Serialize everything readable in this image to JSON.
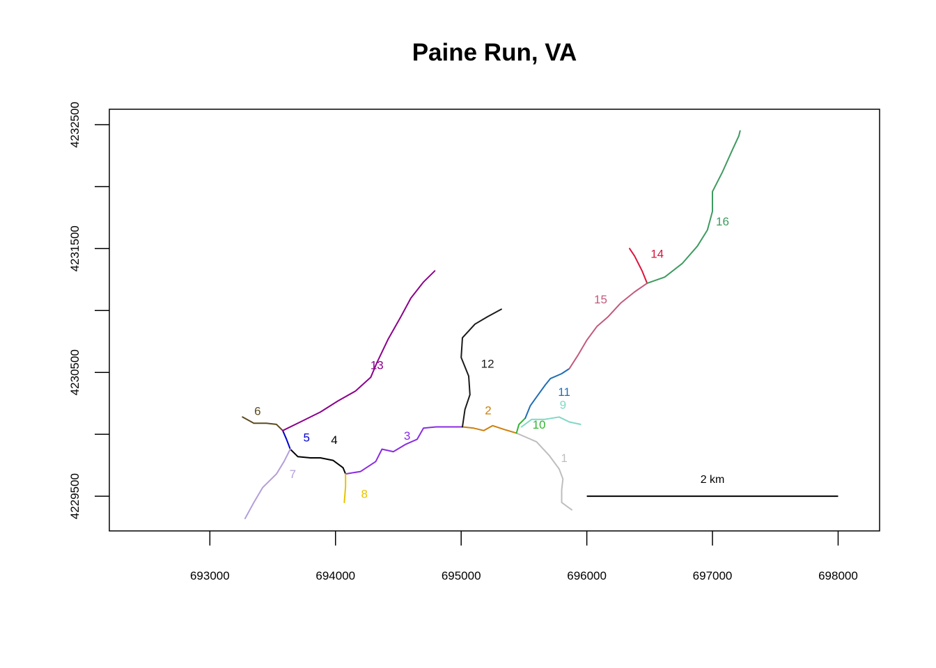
{
  "title": "Paine Run, VA",
  "chart_data": {
    "type": "map",
    "title": "Paine Run, VA",
    "xlabel": "",
    "ylabel": "",
    "xlim": [
      692200,
      698330
    ],
    "ylim": [
      4229220,
      4232625
    ],
    "x_ticks": [
      693000,
      694000,
      695000,
      696000,
      697000,
      698000
    ],
    "y_ticks": [
      4229500,
      4230000,
      4230500,
      4231000,
      4231500,
      4232000,
      4232500
    ],
    "x_tick_labels": [
      "693000",
      "694000",
      "695000",
      "696000",
      "697000",
      "698000"
    ],
    "y_tick_labels": [
      "4229500",
      "4230500",
      "4231500",
      "4232500"
    ],
    "grid": false,
    "scale_bar": {
      "label": "2 km",
      "x_start": 696000,
      "x_end": 698000,
      "y": 4229500
    },
    "segments": [
      {
        "id": "1",
        "label": "1",
        "color": "#bebebe",
        "label_pos": [
          695820,
          4229810
        ],
        "path": [
          [
            695440,
            4230010
          ],
          [
            695600,
            4229940
          ],
          [
            695700,
            4229830
          ],
          [
            695780,
            4229720
          ],
          [
            695810,
            4229640
          ],
          [
            695800,
            4229550
          ],
          [
            695800,
            4229450
          ],
          [
            695840,
            4229420
          ],
          [
            695880,
            4229390
          ]
        ]
      },
      {
        "id": "2",
        "label": "2",
        "color": "#cd7f0a",
        "label_pos": [
          695215,
          4230195
        ],
        "path": [
          [
            695010,
            4230060
          ],
          [
            695100,
            4230050
          ],
          [
            695180,
            4230030
          ],
          [
            695250,
            4230070
          ],
          [
            695340,
            4230040
          ],
          [
            695440,
            4230010
          ]
        ]
      },
      {
        "id": "3",
        "label": "3",
        "color": "#8a2be2",
        "label_pos": [
          694570,
          4229990
        ],
        "path": [
          [
            694080,
            4229680
          ],
          [
            694200,
            4229700
          ],
          [
            694320,
            4229780
          ],
          [
            694370,
            4229880
          ],
          [
            694460,
            4229860
          ],
          [
            694560,
            4229920
          ],
          [
            694650,
            4229960
          ],
          [
            694700,
            4230050
          ],
          [
            694800,
            4230060
          ],
          [
            694900,
            4230060
          ],
          [
            695010,
            4230060
          ]
        ]
      },
      {
        "id": "4",
        "label": "4",
        "color": "#000000",
        "label_pos": [
          693990,
          4229955
        ],
        "path": [
          [
            693640,
            4229880
          ],
          [
            693700,
            4229820
          ],
          [
            693800,
            4229810
          ],
          [
            693880,
            4229810
          ],
          [
            693980,
            4229790
          ],
          [
            694060,
            4229730
          ],
          [
            694080,
            4229680
          ]
        ]
      },
      {
        "id": "5",
        "label": "5",
        "color": "#0000cd",
        "label_pos": [
          693770,
          4229975
        ],
        "path": [
          [
            693580,
            4230030
          ],
          [
            693610,
            4229960
          ],
          [
            693640,
            4229880
          ]
        ]
      },
      {
        "id": "6",
        "label": "6",
        "color": "#5c4a1f",
        "label_pos": [
          693380,
          4230190
        ],
        "path": [
          [
            693260,
            4230140
          ],
          [
            693350,
            4230090
          ],
          [
            693450,
            4230090
          ],
          [
            693530,
            4230080
          ],
          [
            693580,
            4230030
          ]
        ]
      },
      {
        "id": "7",
        "label": "7",
        "color": "#b39ddb",
        "label_pos": [
          693660,
          4229680
        ],
        "path": [
          [
            693640,
            4229880
          ],
          [
            693590,
            4229780
          ],
          [
            693530,
            4229680
          ],
          [
            693420,
            4229570
          ],
          [
            693350,
            4229450
          ],
          [
            693280,
            4229320
          ]
        ]
      },
      {
        "id": "8",
        "label": "8",
        "color": "#e6c300",
        "label_pos": [
          694230,
          4229520
        ],
        "path": [
          [
            694080,
            4229680
          ],
          [
            694080,
            4229580
          ],
          [
            694070,
            4229450
          ]
        ]
      },
      {
        "id": "9",
        "label": "9",
        "color": "#7fd8c5",
        "label_pos": [
          695810,
          4230240
        ],
        "path": [
          [
            695480,
            4230060
          ],
          [
            695560,
            4230120
          ],
          [
            695660,
            4230120
          ],
          [
            695780,
            4230140
          ],
          [
            695860,
            4230100
          ],
          [
            695950,
            4230080
          ]
        ]
      },
      {
        "id": "10",
        "label": "10",
        "color": "#32b432",
        "label_pos": [
          695620,
          4230080
        ],
        "path": [
          [
            695440,
            4230010
          ],
          [
            695460,
            4230080
          ],
          [
            695510,
            4230130
          ]
        ]
      },
      {
        "id": "11",
        "label": "11",
        "color": "#1f6eb4",
        "label_pos": [
          695820,
          4230345
        ],
        "path": [
          [
            695510,
            4230130
          ],
          [
            695550,
            4230230
          ],
          [
            695620,
            4230330
          ],
          [
            695670,
            4230400
          ],
          [
            695710,
            4230450
          ],
          [
            695800,
            4230490
          ],
          [
            695860,
            4230530
          ]
        ]
      },
      {
        "id": "12",
        "label": "12",
        "color": "#1a1a1a",
        "label_pos": [
          695210,
          4230570
        ],
        "path": [
          [
            695010,
            4230060
          ],
          [
            695030,
            4230200
          ],
          [
            695070,
            4230320
          ],
          [
            695060,
            4230470
          ],
          [
            695000,
            4230620
          ],
          [
            695010,
            4230780
          ],
          [
            695110,
            4230890
          ],
          [
            695210,
            4230950
          ],
          [
            695320,
            4231010
          ]
        ]
      },
      {
        "id": "13",
        "label": "13",
        "color": "#8b008b",
        "label_pos": [
          694330,
          4230560
        ],
        "path": [
          [
            693580,
            4230030
          ],
          [
            693740,
            4230110
          ],
          [
            693880,
            4230180
          ],
          [
            694020,
            4230270
          ],
          [
            694160,
            4230350
          ],
          [
            694280,
            4230460
          ],
          [
            694330,
            4230580
          ],
          [
            694420,
            4230770
          ],
          [
            694520,
            4230950
          ],
          [
            694600,
            4231100
          ],
          [
            694700,
            4231230
          ],
          [
            694790,
            4231320
          ]
        ]
      },
      {
        "id": "15",
        "label": "15",
        "color": "#c15a7c",
        "label_pos": [
          696110,
          4231090
        ],
        "path": [
          [
            695860,
            4230530
          ],
          [
            695930,
            4230640
          ],
          [
            696000,
            4230760
          ],
          [
            696080,
            4230870
          ],
          [
            696170,
            4230950
          ],
          [
            696270,
            4231060
          ],
          [
            696380,
            4231150
          ],
          [
            696480,
            4231220
          ]
        ]
      },
      {
        "id": "14",
        "label": "14",
        "color": "#dc143c",
        "label_pos": [
          696560,
          4231460
        ],
        "path": [
          [
            696480,
            4231220
          ],
          [
            696440,
            4231320
          ],
          [
            696380,
            4231440
          ],
          [
            696340,
            4231500
          ]
        ]
      },
      {
        "id": "16",
        "label": "16",
        "color": "#3e9a60",
        "label_pos": [
          697080,
          4231720
        ],
        "path": [
          [
            696480,
            4231220
          ],
          [
            696620,
            4231270
          ],
          [
            696760,
            4231380
          ],
          [
            696880,
            4231520
          ],
          [
            696960,
            4231650
          ],
          [
            697000,
            4231800
          ],
          [
            697000,
            4231960
          ],
          [
            697080,
            4232120
          ],
          [
            697160,
            4232300
          ],
          [
            697210,
            4232410
          ],
          [
            697220,
            4232450
          ]
        ]
      }
    ]
  }
}
